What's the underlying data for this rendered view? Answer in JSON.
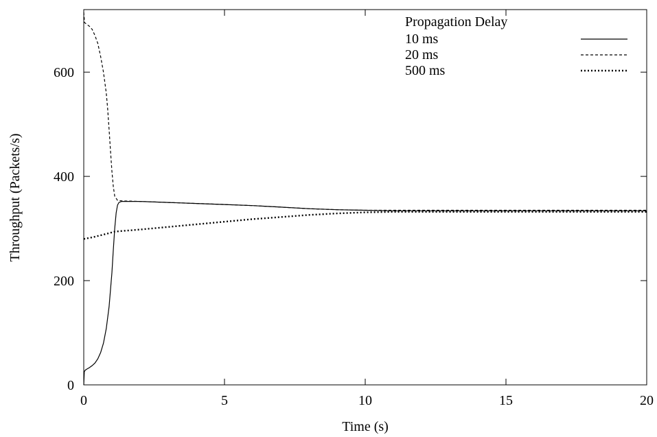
{
  "chart_data": {
    "type": "line",
    "title": "",
    "xlabel": "Time (s)",
    "ylabel": "Throughput (Packets/s)",
    "xlim": [
      0,
      20
    ],
    "ylim": [
      0,
      720
    ],
    "xticks": [
      0,
      5,
      10,
      15,
      20
    ],
    "yticks": [
      0,
      200,
      400,
      600
    ],
    "grid": false,
    "legend": {
      "title": "Propagation Delay",
      "placement": "top-right"
    },
    "series": [
      {
        "name": "10 ms",
        "style": "solid",
        "x": [
          0,
          0.02,
          0.05,
          0.1,
          0.2,
          0.3,
          0.4,
          0.5,
          0.6,
          0.7,
          0.8,
          0.9,
          1.0,
          1.05,
          1.1,
          1.15,
          1.2,
          1.25,
          1.35,
          2,
          3,
          4,
          5,
          6,
          7,
          8,
          9,
          10,
          11,
          12,
          13,
          14,
          15,
          16,
          17,
          18,
          19,
          20
        ],
        "y": [
          0,
          25,
          28,
          30,
          33,
          37,
          42,
          50,
          62,
          80,
          108,
          150,
          215,
          260,
          300,
          330,
          345,
          350,
          352,
          352,
          350,
          348,
          346,
          344,
          341,
          338,
          336,
          335,
          334,
          334,
          334,
          334,
          334,
          334,
          334,
          334,
          334,
          334
        ]
      },
      {
        "name": "20 ms",
        "style": "dashed",
        "x": [
          0,
          0.03,
          0.1,
          0.2,
          0.3,
          0.4,
          0.5,
          0.6,
          0.7,
          0.8,
          0.85,
          0.9,
          0.95,
          1.0,
          1.05,
          1.1,
          1.2,
          1.35,
          2,
          3,
          4,
          5,
          6,
          7,
          8,
          9,
          10,
          11,
          12,
          13,
          14,
          15,
          16,
          17,
          18,
          19,
          20
        ],
        "y": [
          715,
          695,
          692,
          688,
          682,
          670,
          655,
          630,
          600,
          560,
          530,
          490,
          450,
          410,
          380,
          362,
          354,
          353,
          352,
          350,
          348,
          346,
          344,
          341,
          338,
          336,
          335,
          335,
          335,
          335,
          335,
          335,
          335,
          335,
          335,
          335,
          335
        ]
      },
      {
        "name": "500 ms",
        "style": "dotted",
        "x": [
          0,
          0.3,
          0.6,
          0.9,
          1.1,
          1.3,
          2,
          3,
          4,
          5,
          6,
          7,
          8,
          9,
          10,
          11,
          12,
          13,
          14,
          15,
          16,
          17,
          18,
          19,
          20
        ],
        "y": [
          280,
          283,
          287,
          291,
          294,
          295,
          298,
          303,
          308,
          313,
          318,
          322,
          326,
          329,
          331,
          332,
          332,
          332,
          332,
          332,
          332,
          332,
          332,
          332,
          332
        ]
      }
    ]
  }
}
